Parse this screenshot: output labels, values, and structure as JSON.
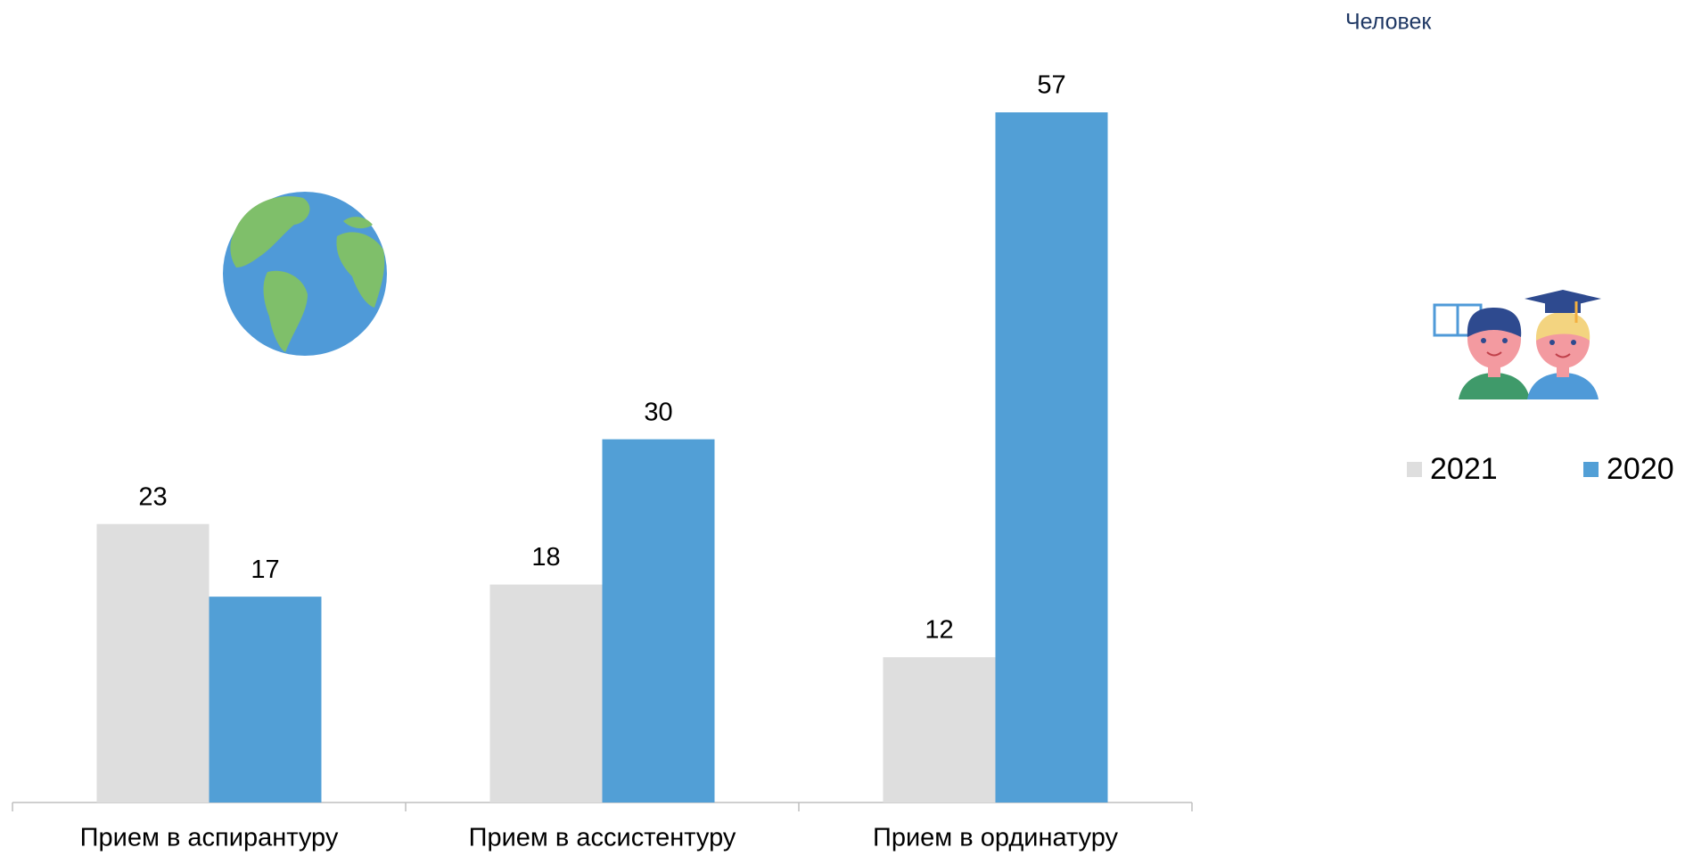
{
  "chart_data": {
    "type": "bar",
    "unit_label": "Человек",
    "categories": [
      "Прием в аспирантуру",
      "Прием в ассистентуру",
      "Прием в ординатуру"
    ],
    "series": [
      {
        "name": "2021",
        "color": "#dedede",
        "values": [
          23,
          18,
          12
        ]
      },
      {
        "name": "2020",
        "color": "#529fd6",
        "values": [
          17,
          30,
          57
        ]
      }
    ]
  }
}
